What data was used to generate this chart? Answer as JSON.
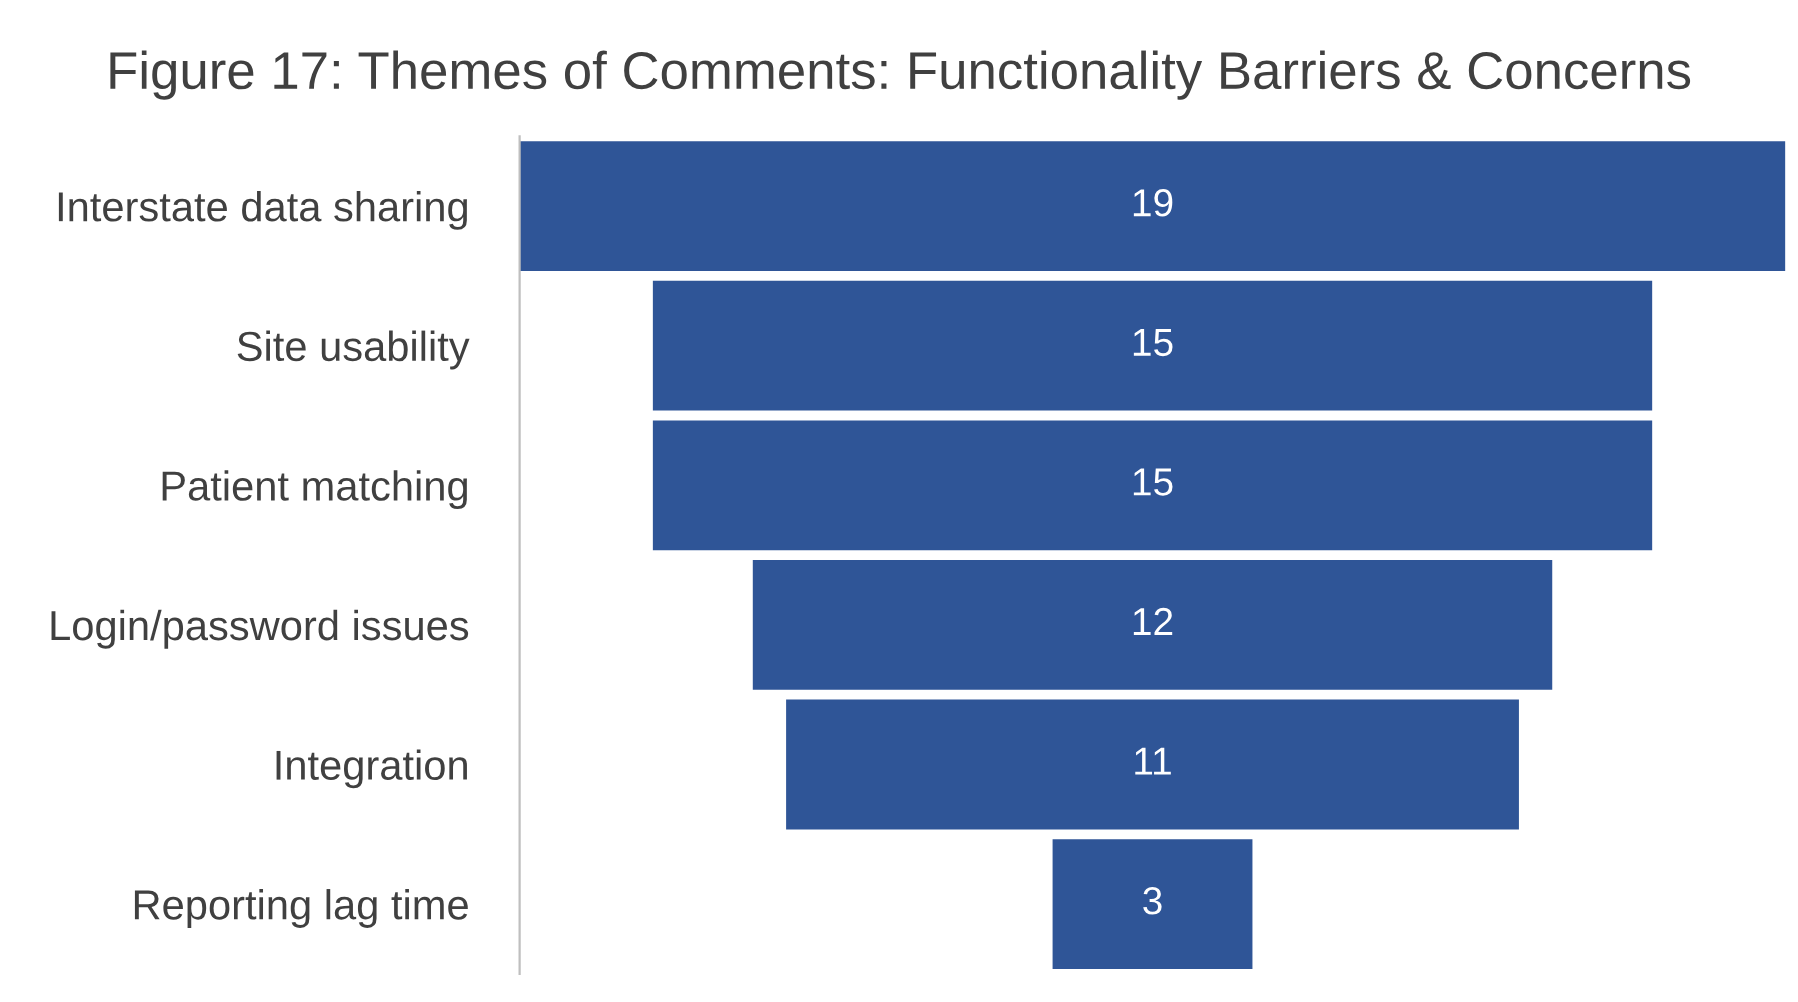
{
  "chart_data": {
    "type": "other",
    "title": "Figure 17: Themes of Comments: Functionality Barriers & Concerns",
    "categories": [
      "Interstate data sharing",
      "Site usability",
      "Patient matching",
      "Login/password issues",
      "Integration",
      "Reporting lag time"
    ],
    "values": [
      19,
      15,
      15,
      12,
      11,
      3
    ],
    "color": "#2f5597",
    "data_labels": true
  }
}
